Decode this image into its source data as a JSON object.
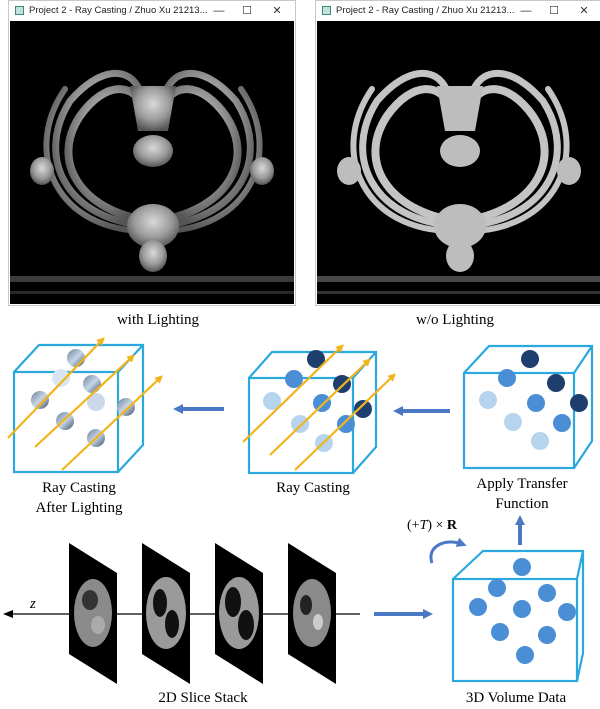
{
  "windows": {
    "left": {
      "title": "Project 2 - Ray Casting / Zhuo Xu 21213...",
      "caption": "with Lighting"
    },
    "right": {
      "title": "Project 2 - Ray Casting / Zhuo Xu 21213...",
      "caption": "w/o Lighting"
    },
    "controls": {
      "minimize": "—",
      "maximize": "☐",
      "close": "✕"
    }
  },
  "pipeline": {
    "ray_casting_after_lighting_1": "Ray Casting",
    "ray_casting_after_lighting_2": "After Lighting",
    "ray_casting": "Ray Casting",
    "transfer_1": "Apply Transfer",
    "transfer_2": "Function",
    "slice_stack": "2D Slice Stack",
    "volume": "3D Volume Data",
    "axis_label": "z",
    "formula_pre": "(+",
    "formula_T": "T",
    "formula_mid": ") × ",
    "formula_R": "R"
  },
  "colors": {
    "cube": "#29a9dd",
    "arrow_blue": "#4a78c4",
    "ray": "#f2b41b",
    "dark_sphere": "#1e3f6e",
    "mid_sphere": "#4a8fd6",
    "light_sphere": "#b6d4ee"
  }
}
